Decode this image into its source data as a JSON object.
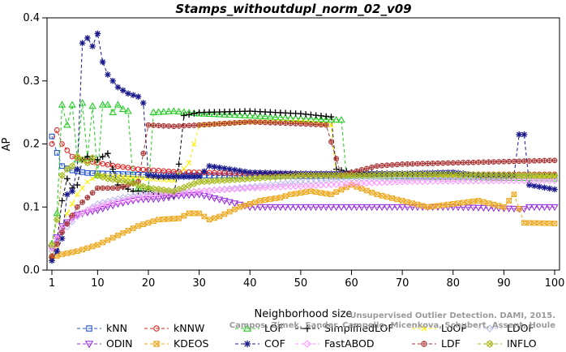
{
  "chart_data": {
    "type": "line",
    "title": "Stamps_withoutdupl_norm_02_v09",
    "xlabel": "Neighborhood size",
    "ylabel": "AP",
    "xlim": [
      1,
      100
    ],
    "ylim": [
      0,
      0.4
    ],
    "xticks": [
      1,
      10,
      20,
      30,
      40,
      50,
      60,
      70,
      80,
      90,
      100
    ],
    "yticks": [
      0.0,
      0.1,
      0.2,
      0.3,
      0.4
    ],
    "grid": false,
    "legend_position": "bottom",
    "watermark": [
      "Unsupervised Outlier Detection. DAMI, 2015.",
      "Campos, Zimek, Sander, Campello, Micenkova, Schubert, Assent, Houle"
    ],
    "series": [
      {
        "name": "kNN",
        "color": "#2255cc",
        "marker": "square",
        "knots": [
          [
            1,
            0.212
          ],
          [
            2,
            0.186
          ],
          [
            3,
            0.165
          ],
          [
            5,
            0.158
          ],
          [
            8,
            0.154
          ],
          [
            12,
            0.153
          ],
          [
            20,
            0.151
          ],
          [
            30,
            0.15
          ],
          [
            45,
            0.149
          ],
          [
            60,
            0.149
          ],
          [
            75,
            0.149
          ],
          [
            100,
            0.148
          ]
        ]
      },
      {
        "name": "kNNW",
        "color": "#dd2222",
        "marker": "circle",
        "knots": [
          [
            1,
            0.2
          ],
          [
            2,
            0.222
          ],
          [
            3,
            0.2
          ],
          [
            5,
            0.18
          ],
          [
            8,
            0.173
          ],
          [
            12,
            0.167
          ],
          [
            18,
            0.16
          ],
          [
            25,
            0.156
          ],
          [
            35,
            0.154
          ],
          [
            50,
            0.152
          ],
          [
            70,
            0.152
          ],
          [
            100,
            0.152
          ]
        ]
      },
      {
        "name": "LOF",
        "color": "#22cc22",
        "marker": "triangle-up",
        "knots": [
          [
            1,
            0.042
          ],
          [
            2,
            0.09
          ],
          [
            3,
            0.262
          ],
          [
            4,
            0.23
          ],
          [
            5,
            0.262
          ],
          [
            6,
            0.175
          ],
          [
            7,
            0.265
          ],
          [
            8,
            0.178
          ],
          [
            9,
            0.26
          ],
          [
            10,
            0.15
          ],
          [
            11,
            0.262
          ],
          [
            12,
            0.262
          ],
          [
            13,
            0.25
          ],
          [
            14,
            0.262
          ],
          [
            15,
            0.255
          ],
          [
            16,
            0.252
          ],
          [
            17,
            0.14
          ],
          [
            18,
            0.13
          ],
          [
            20,
            0.128
          ],
          [
            21,
            0.25
          ],
          [
            25,
            0.252
          ],
          [
            30,
            0.248
          ],
          [
            40,
            0.245
          ],
          [
            50,
            0.24
          ],
          [
            58,
            0.238
          ],
          [
            59,
            0.15
          ],
          [
            70,
            0.148
          ],
          [
            100,
            0.145
          ]
        ]
      },
      {
        "name": "SimplifiedLOF",
        "color": "#000000",
        "marker": "plus",
        "knots": [
          [
            1,
            0.02
          ],
          [
            2,
            0.045
          ],
          [
            3,
            0.11
          ],
          [
            4,
            0.145
          ],
          [
            5,
            0.13
          ],
          [
            6,
            0.135
          ],
          [
            7,
            0.175
          ],
          [
            8,
            0.18
          ],
          [
            9,
            0.176
          ],
          [
            10,
            0.175
          ],
          [
            11,
            0.18
          ],
          [
            12,
            0.185
          ],
          [
            14,
            0.135
          ],
          [
            17,
            0.125
          ],
          [
            20,
            0.125
          ],
          [
            23,
            0.118
          ],
          [
            25,
            0.118
          ],
          [
            26,
            0.168
          ],
          [
            27,
            0.245
          ],
          [
            30,
            0.25
          ],
          [
            40,
            0.252
          ],
          [
            50,
            0.248
          ],
          [
            56,
            0.243
          ],
          [
            57,
            0.16
          ],
          [
            60,
            0.155
          ],
          [
            70,
            0.152
          ],
          [
            100,
            0.15
          ]
        ]
      },
      {
        "name": "LoOP",
        "color": "#ffee00",
        "marker": "x",
        "knots": [
          [
            1,
            0.025
          ],
          [
            2,
            0.04
          ],
          [
            4,
            0.09
          ],
          [
            6,
            0.12
          ],
          [
            8,
            0.14
          ],
          [
            10,
            0.15
          ],
          [
            15,
            0.148
          ],
          [
            20,
            0.145
          ],
          [
            25,
            0.142
          ],
          [
            28,
            0.17
          ],
          [
            30,
            0.23
          ],
          [
            40,
            0.235
          ],
          [
            50,
            0.235
          ],
          [
            56,
            0.23
          ],
          [
            57,
            0.15
          ],
          [
            70,
            0.15
          ],
          [
            100,
            0.148
          ]
        ]
      },
      {
        "name": "LDOF",
        "color": "#bbbbee",
        "marker": "diamond",
        "knots": [
          [
            1,
            0.03
          ],
          [
            3,
            0.06
          ],
          [
            6,
            0.085
          ],
          [
            10,
            0.105
          ],
          [
            15,
            0.115
          ],
          [
            20,
            0.122
          ],
          [
            30,
            0.125
          ],
          [
            40,
            0.132
          ],
          [
            50,
            0.14
          ],
          [
            60,
            0.145
          ],
          [
            70,
            0.146
          ],
          [
            80,
            0.147
          ],
          [
            90,
            0.148
          ],
          [
            100,
            0.15
          ]
        ]
      },
      {
        "name": "ODIN",
        "color": "#9933dd",
        "marker": "triangle-down",
        "knots": [
          [
            1,
            0.035
          ],
          [
            3,
            0.07
          ],
          [
            6,
            0.088
          ],
          [
            10,
            0.095
          ],
          [
            14,
            0.105
          ],
          [
            18,
            0.112
          ],
          [
            22,
            0.113
          ],
          [
            26,
            0.118
          ],
          [
            30,
            0.12
          ],
          [
            35,
            0.11
          ],
          [
            40,
            0.1
          ],
          [
            50,
            0.1
          ],
          [
            60,
            0.1
          ],
          [
            70,
            0.1
          ],
          [
            80,
            0.1
          ],
          [
            90,
            0.098
          ],
          [
            94,
            0.097
          ],
          [
            95,
            0.1
          ],
          [
            100,
            0.1
          ]
        ]
      },
      {
        "name": "KDEOS",
        "color": "#eeaa22",
        "marker": "square-x",
        "knots": [
          [
            1,
            0.02
          ],
          [
            3,
            0.025
          ],
          [
            6,
            0.03
          ],
          [
            10,
            0.04
          ],
          [
            14,
            0.055
          ],
          [
            18,
            0.07
          ],
          [
            22,
            0.08
          ],
          [
            26,
            0.082
          ],
          [
            28,
            0.09
          ],
          [
            30,
            0.09
          ],
          [
            32,
            0.08
          ],
          [
            34,
            0.085
          ],
          [
            38,
            0.1
          ],
          [
            42,
            0.11
          ],
          [
            46,
            0.115
          ],
          [
            48,
            0.12
          ],
          [
            52,
            0.125
          ],
          [
            56,
            0.12
          ],
          [
            60,
            0.135
          ],
          [
            65,
            0.12
          ],
          [
            70,
            0.11
          ],
          [
            75,
            0.1
          ],
          [
            80,
            0.105
          ],
          [
            85,
            0.11
          ],
          [
            90,
            0.1
          ],
          [
            92,
            0.12
          ],
          [
            94,
            0.075
          ],
          [
            100,
            0.074
          ]
        ]
      },
      {
        "name": "COF",
        "color": "#1a1a8c",
        "marker": "asterisk",
        "knots": [
          [
            1,
            0.015
          ],
          [
            2,
            0.03
          ],
          [
            3,
            0.05
          ],
          [
            4,
            0.12
          ],
          [
            5,
            0.125
          ],
          [
            6,
            0.16
          ],
          [
            7,
            0.36
          ],
          [
            8,
            0.368
          ],
          [
            9,
            0.355
          ],
          [
            10,
            0.375
          ],
          [
            11,
            0.33
          ],
          [
            12,
            0.31
          ],
          [
            13,
            0.3
          ],
          [
            14,
            0.29
          ],
          [
            16,
            0.28
          ],
          [
            18,
            0.275
          ],
          [
            19,
            0.265
          ],
          [
            20,
            0.15
          ],
          [
            22,
            0.148
          ],
          [
            30,
            0.148
          ],
          [
            32,
            0.165
          ],
          [
            40,
            0.155
          ],
          [
            50,
            0.153
          ],
          [
            60,
            0.153
          ],
          [
            70,
            0.153
          ],
          [
            80,
            0.155
          ],
          [
            85,
            0.15
          ],
          [
            90,
            0.15
          ],
          [
            92,
            0.15
          ],
          [
            93,
            0.215
          ],
          [
            94,
            0.215
          ],
          [
            95,
            0.135
          ],
          [
            100,
            0.128
          ]
        ]
      },
      {
        "name": "FastABOD",
        "color": "#ff99ff",
        "marker": "diamond",
        "knots": [
          [
            1,
            0.035
          ],
          [
            3,
            0.065
          ],
          [
            5,
            0.082
          ],
          [
            8,
            0.095
          ],
          [
            12,
            0.105
          ],
          [
            20,
            0.118
          ],
          [
            30,
            0.125
          ],
          [
            40,
            0.13
          ],
          [
            50,
            0.133
          ],
          [
            60,
            0.137
          ],
          [
            70,
            0.14
          ],
          [
            80,
            0.141
          ],
          [
            100,
            0.142
          ]
        ]
      },
      {
        "name": "LDF",
        "color": "#aa3333",
        "marker": "circle-plus",
        "knots": [
          [
            1,
            0.022
          ],
          [
            3,
            0.06
          ],
          [
            6,
            0.1
          ],
          [
            10,
            0.13
          ],
          [
            14,
            0.13
          ],
          [
            18,
            0.14
          ],
          [
            20,
            0.23
          ],
          [
            25,
            0.228
          ],
          [
            30,
            0.23
          ],
          [
            40,
            0.235
          ],
          [
            50,
            0.232
          ],
          [
            55,
            0.23
          ],
          [
            58,
            0.15
          ],
          [
            60,
            0.155
          ],
          [
            65,
            0.165
          ],
          [
            70,
            0.168
          ],
          [
            80,
            0.17
          ],
          [
            90,
            0.172
          ],
          [
            100,
            0.174
          ]
        ]
      },
      {
        "name": "INFLO",
        "color": "#aabb22",
        "marker": "x-diamond",
        "knots": [
          [
            1,
            0.04
          ],
          [
            2,
            0.08
          ],
          [
            3,
            0.15
          ],
          [
            4,
            0.16
          ],
          [
            5,
            0.165
          ],
          [
            6,
            0.18
          ],
          [
            7,
            0.175
          ],
          [
            8,
            0.17
          ],
          [
            9,
            0.178
          ],
          [
            10,
            0.15
          ],
          [
            12,
            0.145
          ],
          [
            16,
            0.14
          ],
          [
            20,
            0.13
          ],
          [
            25,
            0.125
          ],
          [
            30,
            0.14
          ],
          [
            40,
            0.145
          ],
          [
            50,
            0.15
          ],
          [
            60,
            0.15
          ],
          [
            70,
            0.152
          ],
          [
            100,
            0.15
          ]
        ]
      }
    ]
  }
}
